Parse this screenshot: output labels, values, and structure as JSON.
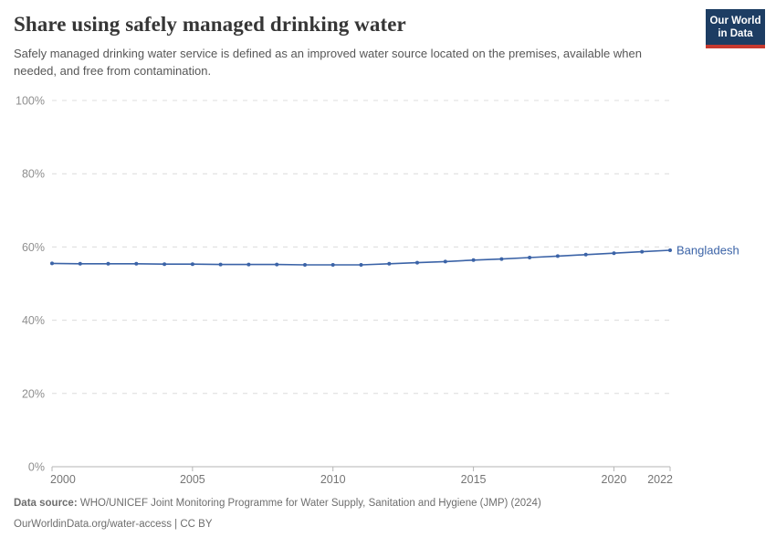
{
  "header": {
    "title": "Share using safely managed drinking water",
    "subtitle": "Safely managed drinking water service is defined as an improved water source located on the premises, available when needed, and free from contamination.",
    "logo_line1": "Our World",
    "logo_line2": "in Data"
  },
  "chart_data": {
    "type": "line",
    "title": "Share using safely managed drinking water",
    "x": [
      2000,
      2001,
      2002,
      2003,
      2004,
      2005,
      2006,
      2007,
      2008,
      2009,
      2010,
      2011,
      2012,
      2013,
      2014,
      2015,
      2016,
      2017,
      2018,
      2019,
      2020,
      2021,
      2022
    ],
    "series": [
      {
        "name": "Bangladesh",
        "color": "#3b63a7",
        "values": [
          55.5,
          55.4,
          55.4,
          55.4,
          55.3,
          55.3,
          55.2,
          55.2,
          55.2,
          55.1,
          55.1,
          55.1,
          55.4,
          55.7,
          56.0,
          56.4,
          56.7,
          57.1,
          57.5,
          57.9,
          58.3,
          58.7,
          59.1
        ]
      }
    ],
    "xlabel": "",
    "ylabel": "",
    "ylim": [
      0,
      100
    ],
    "yticks": [
      0,
      20,
      40,
      60,
      80,
      100
    ],
    "ytick_suffix": "%",
    "xticks": [
      2000,
      2005,
      2010,
      2015,
      2020,
      2022
    ],
    "grid": "horizontal-dashed",
    "legend_position": "end-of-line-label",
    "end_label": "Bangladesh"
  },
  "footer": {
    "data_source_label": "Data source:",
    "data_source_value": "WHO/UNICEF Joint Monitoring Programme for Water Supply, Sanitation and Hygiene (JMP) (2024)",
    "license_line": "OurWorldinData.org/water-access | CC BY"
  },
  "colors": {
    "line": "#3b63a7",
    "end_label": "#3b63a7",
    "grid": "#dcdcdc",
    "axis": "#b5b5b5",
    "y_tick_label": "#8f8f8f",
    "x_tick_label": "#757575",
    "title": "#363636",
    "subtitle": "#575757",
    "footer": "#6e6e6e",
    "logo_bg": "#1d3d63",
    "logo_bar": "#c7392f"
  }
}
